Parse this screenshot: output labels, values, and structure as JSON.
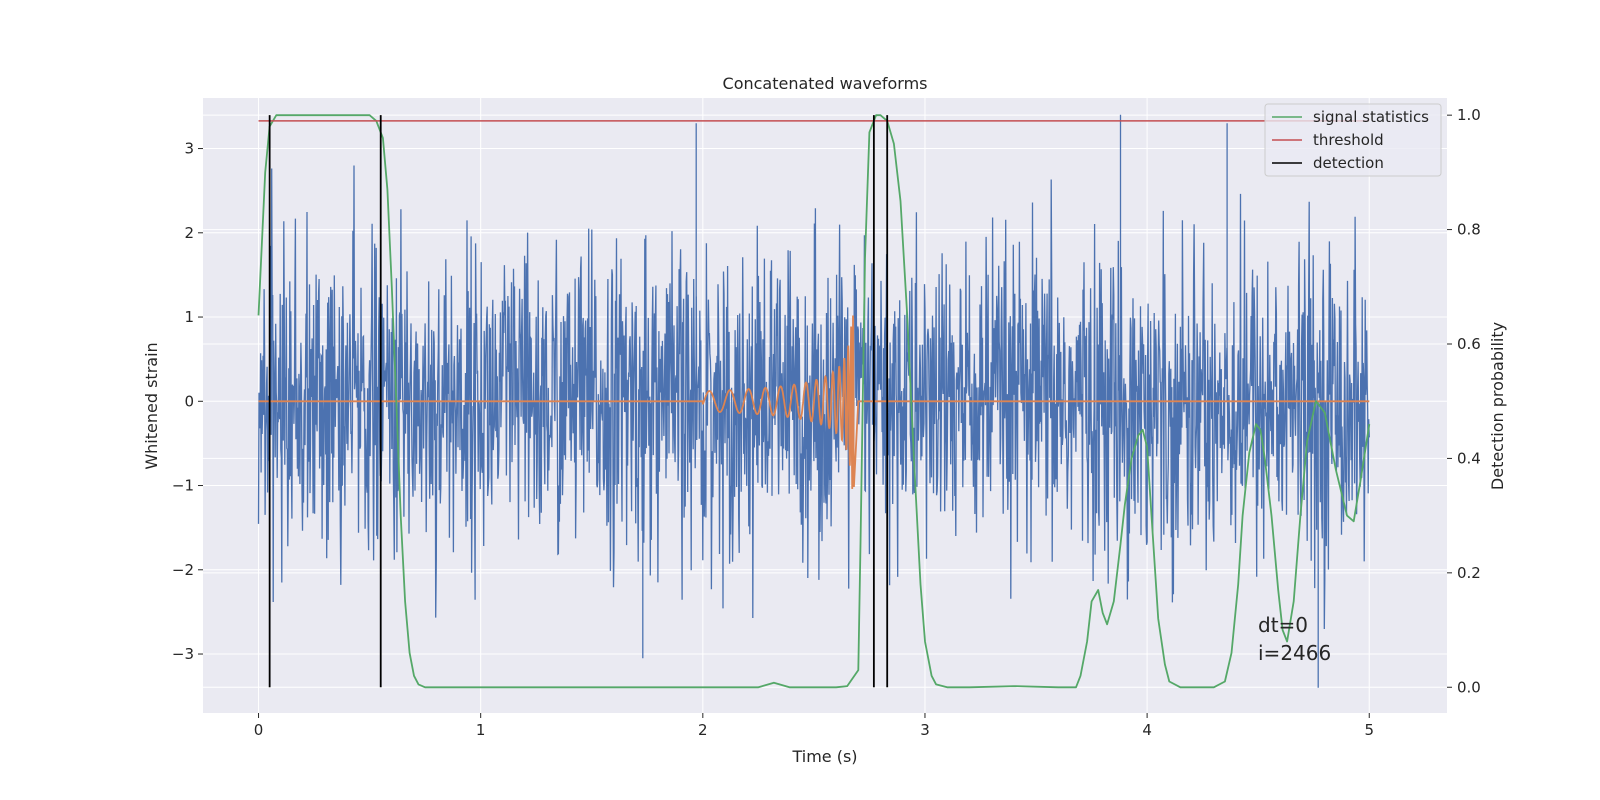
{
  "chart_data": {
    "type": "line",
    "title": "Concatenated waveforms",
    "xlabel": "Time (s)",
    "ylabel": "Whitened strain",
    "ylabel_right": "Detection probability",
    "xlim": [
      -0.25,
      5.35
    ],
    "ylim": [
      -3.7,
      3.6
    ],
    "ylim_right": [
      -0.045,
      1.03
    ],
    "x_ticks": [
      0,
      1,
      2,
      3,
      4,
      5
    ],
    "y_ticks": [
      -3,
      -2,
      -1,
      0,
      1,
      2,
      3
    ],
    "y_ticks_right": [
      0.0,
      0.2,
      0.4,
      0.6,
      0.8,
      1.0
    ],
    "grid": true,
    "legend_position": "top-right",
    "annotation": [
      "dt=0",
      "i=2466"
    ],
    "colors": {
      "strain": "#4c72b0",
      "template": "#dd8452",
      "signal_statistics": "#55a868",
      "threshold": "#c44e52",
      "detection": "#000000",
      "background": "#eaeaf2",
      "grid": "#ffffff"
    },
    "series": [
      {
        "name": "",
        "axis": "left",
        "kind": "noise",
        "x_range": [
          0,
          5
        ],
        "amplitude_envelope": [
          2.0,
          3.1
        ],
        "peak_spikes": [
          {
            "x": 1.97,
            "y": 3.3
          },
          {
            "x": 3.88,
            "y": 3.4
          },
          {
            "x": 4.36,
            "y": 3.3
          },
          {
            "x": 4.77,
            "y": -3.4
          },
          {
            "x": 1.73,
            "y": -3.05
          }
        ]
      },
      {
        "name": "",
        "axis": "left",
        "kind": "chirp",
        "x_range": [
          0,
          5
        ],
        "chirp_start": 2.0,
        "chirp_end": 2.68,
        "max_amplitude": 1.1
      },
      {
        "name": "signal statistics",
        "axis": "right",
        "x": [
          0,
          0.03,
          0.05,
          0.08,
          0.12,
          0.5,
          0.53,
          0.56,
          0.58,
          0.6,
          0.62,
          0.64,
          0.66,
          0.68,
          0.7,
          0.72,
          0.75,
          1.0,
          2.0,
          2.25,
          2.32,
          2.39,
          2.5,
          2.6,
          2.65,
          2.7,
          2.71,
          2.73,
          2.75,
          2.78,
          2.8,
          2.83,
          2.86,
          2.89,
          2.92,
          2.95,
          2.98,
          3.0,
          3.03,
          3.05,
          3.1,
          3.2,
          3.4,
          3.6,
          3.68,
          3.7,
          3.73,
          3.75,
          3.78,
          3.8,
          3.82,
          3.85,
          3.88,
          3.9,
          3.93,
          3.96,
          3.98,
          4.0,
          4.02,
          4.05,
          4.08,
          4.1,
          4.15,
          4.3,
          4.35,
          4.38,
          4.41,
          4.43,
          4.46,
          4.49,
          4.51,
          4.53,
          4.56,
          4.59,
          4.61,
          4.63,
          4.66,
          4.69,
          4.72,
          4.76,
          4.8,
          4.85,
          4.9,
          4.93,
          4.96,
          5.0
        ],
        "y": [
          0.65,
          0.9,
          0.98,
          1.0,
          1.0,
          1.0,
          0.99,
          0.96,
          0.87,
          0.7,
          0.5,
          0.3,
          0.15,
          0.06,
          0.02,
          0.005,
          0.0,
          0.0,
          0.0,
          0.0,
          0.008,
          0.0,
          0.0,
          0.0,
          0.002,
          0.03,
          0.25,
          0.75,
          0.97,
          1.0,
          1.0,
          0.99,
          0.95,
          0.85,
          0.65,
          0.4,
          0.18,
          0.08,
          0.02,
          0.005,
          0.0,
          0.0,
          0.002,
          0.0,
          0.0,
          0.02,
          0.08,
          0.15,
          0.17,
          0.13,
          0.11,
          0.15,
          0.25,
          0.32,
          0.4,
          0.44,
          0.45,
          0.42,
          0.3,
          0.12,
          0.04,
          0.01,
          0.0,
          0.0,
          0.01,
          0.06,
          0.18,
          0.3,
          0.41,
          0.46,
          0.45,
          0.4,
          0.3,
          0.17,
          0.1,
          0.08,
          0.15,
          0.3,
          0.43,
          0.5,
          0.48,
          0.38,
          0.3,
          0.29,
          0.36,
          0.46
        ]
      },
      {
        "name": "threshold",
        "axis": "right",
        "x": [
          0,
          5
        ],
        "y": [
          0.99,
          0.99
        ]
      },
      {
        "name": "detection",
        "axis": "right",
        "vlines": [
          0.05,
          0.55,
          2.77,
          2.83
        ],
        "ymin": 0.0,
        "ymax": 1.0
      }
    ]
  }
}
